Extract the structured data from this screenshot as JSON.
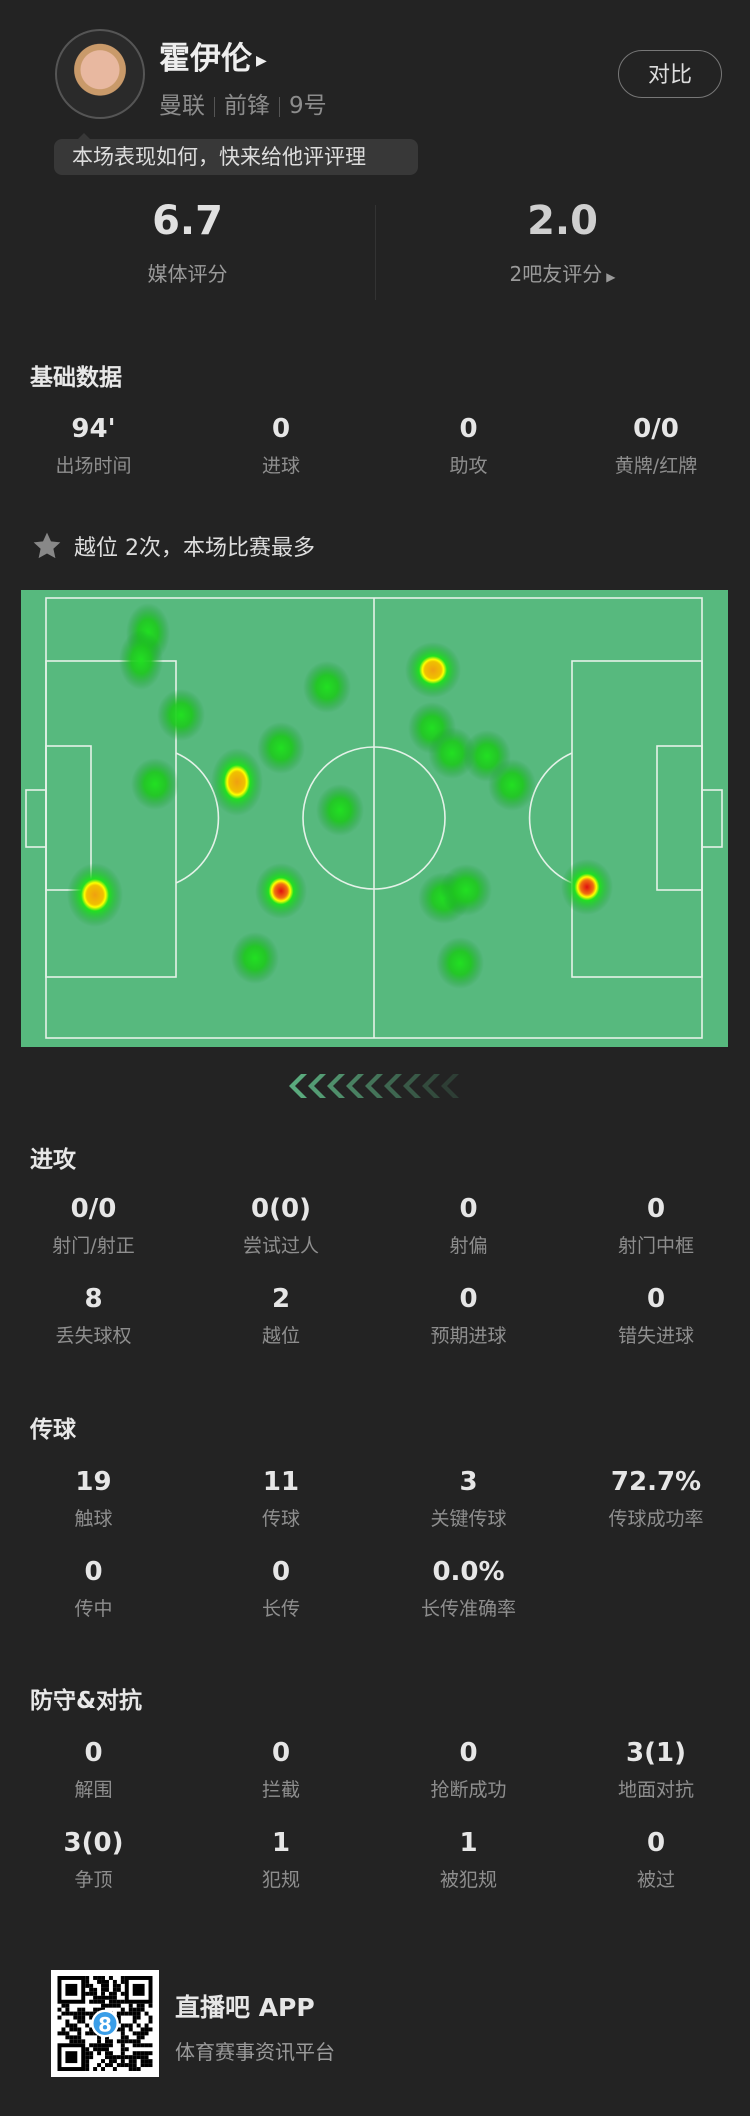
{
  "player": {
    "name": "霍伊伦",
    "team": "曼联",
    "position": "前锋",
    "number": "9号",
    "compare_label": "对比",
    "prompt": "本场表现如何，快来给他评评理"
  },
  "ratings": [
    {
      "value": "6.7",
      "label": "媒体评分"
    },
    {
      "value": "2.0",
      "label": "2吧友评分"
    }
  ],
  "basic": {
    "title": "基础数据",
    "stats": [
      {
        "value": "94'",
        "label": "出场时间"
      },
      {
        "value": "0",
        "label": "进球"
      },
      {
        "value": "0",
        "label": "助攻"
      },
      {
        "value": "0/0",
        "label": "黄牌/红牌"
      }
    ]
  },
  "highlight": {
    "icon": "star-icon",
    "text": "越位 2次，本场比赛最多"
  },
  "heatmap": {
    "pitch_color": "#57b97e"
  },
  "attack": {
    "title": "进攻",
    "stats": [
      {
        "value": "0/0",
        "label": "射门/射正"
      },
      {
        "value": "0(0)",
        "label": "尝试过人"
      },
      {
        "value": "0",
        "label": "射偏"
      },
      {
        "value": "0",
        "label": "射门中框"
      },
      {
        "value": "8",
        "label": "丢失球权"
      },
      {
        "value": "2",
        "label": "越位"
      },
      {
        "value": "0",
        "label": "预期进球"
      },
      {
        "value": "0",
        "label": "错失进球"
      }
    ]
  },
  "passing": {
    "title": "传球",
    "stats": [
      {
        "value": "19",
        "label": "触球"
      },
      {
        "value": "11",
        "label": "传球"
      },
      {
        "value": "3",
        "label": "关键传球"
      },
      {
        "value": "72.7%",
        "label": "传球成功率"
      },
      {
        "value": "0",
        "label": "传中"
      },
      {
        "value": "0",
        "label": "长传"
      },
      {
        "value": "0.0%",
        "label": "长传准确率"
      }
    ]
  },
  "defense": {
    "title": "防守&对抗",
    "stats": [
      {
        "value": "0",
        "label": "解围"
      },
      {
        "value": "0",
        "label": "拦截"
      },
      {
        "value": "0",
        "label": "抢断成功"
      },
      {
        "value": "3(1)",
        "label": "地面对抗"
      },
      {
        "value": "3(0)",
        "label": "争顶"
      },
      {
        "value": "1",
        "label": "犯规"
      },
      {
        "value": "1",
        "label": "被犯规"
      },
      {
        "value": "0",
        "label": "被过"
      }
    ]
  },
  "footer": {
    "app_name": "直播吧 APP",
    "tagline": "体育赛事资讯平台",
    "qr_badge": "8"
  }
}
